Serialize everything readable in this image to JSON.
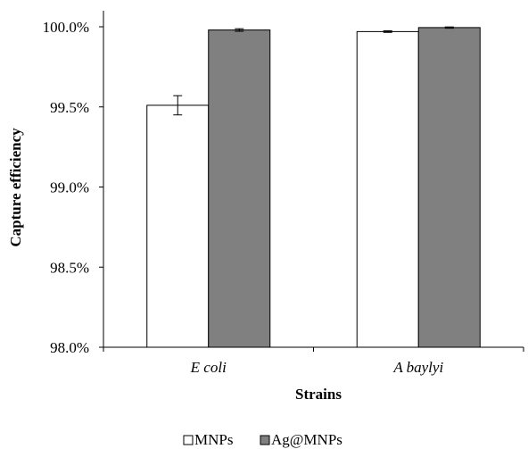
{
  "chart_data": {
    "type": "bar",
    "title": "",
    "xlabel": "Strains",
    "ylabel": "Capture efficiency",
    "categories": [
      "E coli",
      "A baylyi"
    ],
    "ylim": [
      98.0,
      100.0
    ],
    "yticks": [
      "98.0%",
      "98.5%",
      "99.0%",
      "99.5%",
      "100.0%"
    ],
    "ytick_values": [
      98.0,
      98.5,
      99.0,
      99.5,
      100.0
    ],
    "series": [
      {
        "name": "MNPs",
        "color": "#ffffff",
        "values": [
          99.51,
          99.97
        ],
        "errors": [
          0.06,
          0.005
        ]
      },
      {
        "name": "Ag@MNPs",
        "color": "#808080",
        "values": [
          99.98,
          99.995
        ],
        "errors": [
          0.008,
          0.004
        ]
      }
    ],
    "grid": false,
    "legend_position": "bottom-center"
  }
}
